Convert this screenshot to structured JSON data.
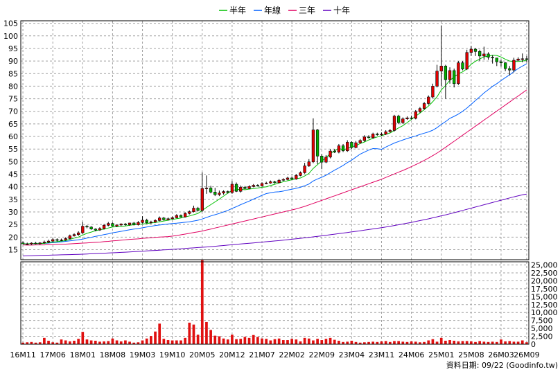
{
  "chart_data": {
    "type": "candlestick",
    "legend": {
      "placement": "top-center",
      "items": [
        {
          "name": "半年",
          "color": "#00c000"
        },
        {
          "name": "年線",
          "color": "#0060ff"
        },
        {
          "name": "三年",
          "color": "#e00060"
        },
        {
          "name": "十年",
          "color": "#6000c0"
        }
      ]
    },
    "price_axis": {
      "min": 11,
      "max": 106,
      "ticks": [
        15,
        20,
        25,
        30,
        35,
        40,
        45,
        50,
        55,
        60,
        65,
        70,
        75,
        80,
        85,
        90,
        95,
        100,
        105
      ],
      "position": "left"
    },
    "volume_axis": {
      "min": 0,
      "max": 26000,
      "ticks": [
        0,
        2500,
        5000,
        7500,
        10000,
        12500,
        15000,
        17500,
        20000,
        22500,
        25000
      ],
      "tick_labels": [
        "0",
        "2,500",
        "5,000",
        "7,500",
        "10,000",
        "12,500",
        "15,000",
        "17,500",
        "20,000",
        "22,500",
        "25,000"
      ],
      "position": "right"
    },
    "x_axis": {
      "months": 119,
      "ticks": [
        {
          "i": 0,
          "label": "16M11"
        },
        {
          "i": 7,
          "label": "17M06"
        },
        {
          "i": 14,
          "label": "18M01"
        },
        {
          "i": 21,
          "label": "18M08"
        },
        {
          "i": 28,
          "label": "19M03"
        },
        {
          "i": 35,
          "label": "19M10"
        },
        {
          "i": 42,
          "label": "20M05"
        },
        {
          "i": 49,
          "label": "20M12"
        },
        {
          "i": 56,
          "label": "21M07"
        },
        {
          "i": 63,
          "label": "22M02"
        },
        {
          "i": 70,
          "label": "22M09"
        },
        {
          "i": 77,
          "label": "23M04"
        },
        {
          "i": 84,
          "label": "23M11"
        },
        {
          "i": 91,
          "label": "24M06"
        },
        {
          "i": 98,
          "label": "25M01"
        },
        {
          "i": 105,
          "label": "25M08"
        },
        {
          "i": 112,
          "label": "26M03"
        },
        {
          "i": 118,
          "label": "26M09"
        }
      ]
    },
    "grid": true,
    "close": [
      17.3,
      17.3,
      17.6,
      17.4,
      17.7,
      18.0,
      18.4,
      19.0,
      18.7,
      18.9,
      19.4,
      20.5,
      21.0,
      21.7,
      24.3,
      24.0,
      23.2,
      22.8,
      23.4,
      24.7,
      25.4,
      24.4,
      24.8,
      25.2,
      24.9,
      25.6,
      24.9,
      25.8,
      26.7,
      25.7,
      26.0,
      26.6,
      27.6,
      26.9,
      27.3,
      27.7,
      28.6,
      28.0,
      29.4,
      30.1,
      31.5,
      30.6,
      39.3,
      39.5,
      37.9,
      36.9,
      37.5,
      38.1,
      37.7,
      41.0,
      38.2,
      39.8,
      39.3,
      40.1,
      40.6,
      40.4,
      41.3,
      41.5,
      42.0,
      41.6,
      42.6,
      42.9,
      43.5,
      43.1,
      44.5,
      45.6,
      48.3,
      49.9,
      62.6,
      52.2,
      49.8,
      51.8,
      54.2,
      53.8,
      56.3,
      54.3,
      57.7,
      55.6,
      57.5,
      58.4,
      59.8,
      59.5,
      61.0,
      60.7,
      60.9,
      61.9,
      62.4,
      68.1,
      65.5,
      67.0,
      67.4,
      67.2,
      69.9,
      71.1,
      73.1,
      75.7,
      80.0,
      86.0,
      88.0,
      82.6,
      86.2,
      81.0,
      89.3,
      86.8,
      93.4,
      94.7,
      93.8,
      92.0,
      92.8,
      91.5,
      91.2,
      89.7,
      89.3,
      87.0,
      86.4,
      90.3,
      90.8,
      90.9,
      90.8
    ],
    "open": [
      17.7,
      17.3,
      17.3,
      17.6,
      17.4,
      17.7,
      18.0,
      18.4,
      19.0,
      18.7,
      18.9,
      19.4,
      20.5,
      21.0,
      21.7,
      24.3,
      24.0,
      23.2,
      22.8,
      23.4,
      24.7,
      25.4,
      24.4,
      24.8,
      25.2,
      24.9,
      25.6,
      24.9,
      25.8,
      26.7,
      25.7,
      26.0,
      26.6,
      27.6,
      26.9,
      27.3,
      27.7,
      28.6,
      28.0,
      29.4,
      30.1,
      31.5,
      30.6,
      39.3,
      39.5,
      37.9,
      36.9,
      37.5,
      38.1,
      37.7,
      41.0,
      38.2,
      39.8,
      39.3,
      40.1,
      40.6,
      40.4,
      41.3,
      41.5,
      42.0,
      41.6,
      42.6,
      42.9,
      43.5,
      43.1,
      44.5,
      45.6,
      48.3,
      49.9,
      62.6,
      52.2,
      49.8,
      51.8,
      54.2,
      53.8,
      56.3,
      54.3,
      57.7,
      55.6,
      57.5,
      58.4,
      59.8,
      59.5,
      61.0,
      60.7,
      60.9,
      61.9,
      62.4,
      68.1,
      65.5,
      67.0,
      67.4,
      67.2,
      69.9,
      71.1,
      73.1,
      75.7,
      80.0,
      86.0,
      88.0,
      82.6,
      86.2,
      81.0,
      89.3,
      86.8,
      93.4,
      94.7,
      93.8,
      92.0,
      92.8,
      91.5,
      91.2,
      89.7,
      89.3,
      87.0,
      86.4,
      90.3,
      90.8,
      90.9
    ],
    "high": [
      18.3,
      17.8,
      17.9,
      18.1,
      18.0,
      18.6,
      19.0,
      19.5,
      19.5,
      19.4,
      19.9,
      21.0,
      21.5,
      22.3,
      26.0,
      24.8,
      24.3,
      23.5,
      23.9,
      25.2,
      26.0,
      25.8,
      25.0,
      25.5,
      25.6,
      25.7,
      26.0,
      26.4,
      28.3,
      27.3,
      26.5,
      27.1,
      28.2,
      28.0,
      27.8,
      28.2,
      29.1,
      29.0,
      29.9,
      30.6,
      32.5,
      32.0,
      45.7,
      44.5,
      40.4,
      39.6,
      38.5,
      38.6,
      38.5,
      42.3,
      41.7,
      40.5,
      40.3,
      40.6,
      41.1,
      41.0,
      41.8,
      42.0,
      42.5,
      42.4,
      43.1,
      43.4,
      44.0,
      44.0,
      45.0,
      46.1,
      49.5,
      51.0,
      67.2,
      63.0,
      53.0,
      52.6,
      55.0,
      55.0,
      57.0,
      57.0,
      58.5,
      58.1,
      58.2,
      59.0,
      60.5,
      60.5,
      61.5,
      61.5,
      61.6,
      62.5,
      63.0,
      68.6,
      68.6,
      67.6,
      68.0,
      68.3,
      70.5,
      71.7,
      73.7,
      76.3,
      81.0,
      88.5,
      104.0,
      88.5,
      87.5,
      87.0,
      90.0,
      90.0,
      94.5,
      96.0,
      95.2,
      94.5,
      95.7,
      93.5,
      92.3,
      91.2,
      90.5,
      89.5,
      88.0,
      91.3,
      91.5,
      93.0,
      92.0
    ],
    "low": [
      17.2,
      16.8,
      16.9,
      17.1,
      17.0,
      17.4,
      17.6,
      18.0,
      18.3,
      18.4,
      18.6,
      19.1,
      20.2,
      20.5,
      21.3,
      23.5,
      22.9,
      22.3,
      22.5,
      23.0,
      24.3,
      24.2,
      24.0,
      24.4,
      24.5,
      24.5,
      24.6,
      24.6,
      25.4,
      25.4,
      25.3,
      25.7,
      26.3,
      26.6,
      26.6,
      27.0,
      27.5,
      27.8,
      27.8,
      29.0,
      29.8,
      30.2,
      30.0,
      37.2,
      37.4,
      36.3,
      36.3,
      36.9,
      37.3,
      37.2,
      37.9,
      37.7,
      39.0,
      39.0,
      39.8,
      40.1,
      40.1,
      41.0,
      41.2,
      41.3,
      41.4,
      42.3,
      42.6,
      42.8,
      42.8,
      44.2,
      45.2,
      47.9,
      49.4,
      49.0,
      47.0,
      49.4,
      51.3,
      53.4,
      53.3,
      53.8,
      53.9,
      55.0,
      55.3,
      57.1,
      57.9,
      59.2,
      59.1,
      60.3,
      60.2,
      60.6,
      61.6,
      62.0,
      64.9,
      65.0,
      66.6,
      66.8,
      66.8,
      69.4,
      70.6,
      72.6,
      75.2,
      79.5,
      80.0,
      75.0,
      81.0,
      79.5,
      80.5,
      86.3,
      86.4,
      92.0,
      92.0,
      90.0,
      90.5,
      90.5,
      89.0,
      88.0,
      87.8,
      86.0,
      84.3,
      85.5,
      90.0,
      89.5,
      89.5
    ],
    "volume": [
      500,
      600,
      700,
      500,
      600,
      2000,
      1100,
      600,
      500,
      1500,
      1200,
      900,
      1100,
      1700,
      3900,
      1500,
      1200,
      1100,
      800,
      900,
      1000,
      1800,
      1200,
      900,
      1200,
      800,
      500,
      600,
      1200,
      1800,
      2600,
      4000,
      6500,
      1700,
      1300,
      1200,
      1200,
      1200,
      2000,
      6800,
      6200,
      3000,
      26500,
      7000,
      4500,
      2700,
      2500,
      1800,
      1500,
      3000,
      1600,
      1700,
      2300,
      2000,
      2900,
      2300,
      1800,
      1700,
      1200,
      1600,
      1800,
      1300,
      1300,
      1700,
      1500,
      900,
      2000,
      1800,
      1200,
      1700,
      1300,
      1700,
      2000,
      1400,
      1100,
      700,
      800,
      1100,
      700,
      500,
      600,
      700,
      800,
      700,
      900,
      1000,
      700,
      1000,
      1000,
      800,
      700,
      900,
      800,
      600,
      700,
      1200,
      1600,
      800,
      2000,
      1100,
      1300,
      1100,
      900,
      1000,
      1000,
      900,
      700,
      1000,
      800,
      700,
      800,
      700,
      1500,
      900,
      1000,
      800,
      800,
      1200,
      600
    ],
    "ma_half_year": [
      17.3,
      17.3,
      17.4,
      17.4,
      17.4,
      17.5,
      17.8,
      18.0,
      18.2,
      18.4,
      18.6,
      19.1,
      19.6,
      20.0,
      20.8,
      21.5,
      22.0,
      22.5,
      22.9,
      23.2,
      23.6,
      24.0,
      24.1,
      24.2,
      24.4,
      24.7,
      24.9,
      25.1,
      25.2,
      25.4,
      25.6,
      25.8,
      26.1,
      26.4,
      26.7,
      27.0,
      27.3,
      27.6,
      28.0,
      28.4,
      28.9,
      29.4,
      30.6,
      31.8,
      32.9,
      34.0,
      35.1,
      36.3,
      37.5,
      38.5,
      38.9,
      39.0,
      38.8,
      39.1,
      39.3,
      39.5,
      39.8,
      40.0,
      40.5,
      41.0,
      41.5,
      42.0,
      42.4,
      42.8,
      43.2,
      43.5,
      44.3,
      45.3,
      47.3,
      48.8,
      50.2,
      51.6,
      53.2,
      54.3,
      55.4,
      54.5,
      55.3,
      55.9,
      56.3,
      57.2,
      57.8,
      58.6,
      59.3,
      59.8,
      60.3,
      60.9,
      61.4,
      62.4,
      63.4,
      64.3,
      65.5,
      66.8,
      68.1,
      69.3,
      70.7,
      72.1,
      73.8,
      75.8,
      78.5,
      80.3,
      82.3,
      83.6,
      84.9,
      85.7,
      86.9,
      88.7,
      89.9,
      90.8,
      91.7,
      91.9,
      92.3,
      92.2,
      91.6,
      90.7,
      90.0,
      89.8,
      89.8,
      90.0,
      90.3
    ],
    "ma_year": [
      17.3,
      17.3,
      17.4,
      17.4,
      17.4,
      17.5,
      17.6,
      17.8,
      17.9,
      18.1,
      18.3,
      18.5,
      18.7,
      18.9,
      19.2,
      19.6,
      19.9,
      20.3,
      20.6,
      21.0,
      21.3,
      21.7,
      22.0,
      22.3,
      22.6,
      22.9,
      23.2,
      23.4,
      23.7,
      24.0,
      24.3,
      24.6,
      24.8,
      25.0,
      25.2,
      25.4,
      25.5,
      25.7,
      25.9,
      26.1,
      26.4,
      26.7,
      27.2,
      27.8,
      28.4,
      28.9,
      29.4,
      30.0,
      30.6,
      31.4,
      32.1,
      32.9,
      33.6,
      34.3,
      35.1,
      35.8,
      36.6,
      37.3,
      37.6,
      37.9,
      38.0,
      38.3,
      38.7,
      39.0,
      39.4,
      39.8,
      40.4,
      41.1,
      42.3,
      43.1,
      43.8,
      44.6,
      45.6,
      46.6,
      47.5,
      48.5,
      49.6,
      50.6,
      51.8,
      53.0,
      53.8,
      54.6,
      55.2,
      55.1,
      54.9,
      55.8,
      56.6,
      57.4,
      58.0,
      58.6,
      59.2,
      59.7,
      60.2,
      60.8,
      61.3,
      61.8,
      62.5,
      63.5,
      64.8,
      65.9,
      67.2,
      68.0,
      68.9,
      70.0,
      71.3,
      72.8,
      74.3,
      75.8,
      77.3,
      78.6,
      79.9,
      81.0,
      82.2,
      83.4,
      84.5,
      85.8,
      87.0,
      88.0,
      88.9
    ],
    "ma_three_year": [
      16.9,
      16.8,
      16.8,
      16.9,
      16.9,
      16.9,
      17.0,
      17.0,
      17.1,
      17.2,
      17.2,
      17.3,
      17.4,
      17.5,
      17.6,
      17.7,
      17.8,
      17.9,
      18.0,
      18.2,
      18.3,
      18.5,
      18.6,
      18.8,
      18.9,
      19.1,
      19.2,
      19.3,
      19.5,
      19.6,
      19.7,
      19.9,
      20.0,
      20.1,
      20.2,
      20.4,
      20.6,
      20.9,
      21.2,
      21.5,
      21.8,
      22.1,
      22.4,
      22.8,
      23.2,
      23.6,
      24.0,
      24.4,
      24.8,
      25.2,
      25.6,
      26.0,
      26.4,
      26.8,
      27.2,
      27.6,
      28.0,
      28.4,
      28.8,
      29.2,
      29.6,
      30.0,
      30.4,
      30.8,
      31.2,
      31.7,
      32.2,
      32.8,
      33.4,
      34.0,
      34.6,
      35.2,
      35.8,
      36.4,
      37.0,
      37.6,
      38.2,
      38.8,
      39.4,
      40.0,
      40.6,
      41.2,
      41.8,
      42.4,
      43.0,
      43.7,
      44.4,
      45.1,
      45.8,
      46.5,
      47.2,
      48.0,
      48.8,
      49.6,
      50.5,
      51.4,
      52.4,
      53.4,
      54.5,
      55.7,
      56.9,
      58.1,
      59.3,
      60.5,
      61.7,
      62.9,
      64.1,
      65.3,
      66.5,
      67.7,
      68.9,
      70.1,
      71.3,
      72.5,
      73.7,
      74.9,
      76.1,
      77.3,
      78.5
    ],
    "ma_ten_year": [
      12.5,
      12.55,
      12.6,
      12.65,
      12.7,
      12.75,
      12.8,
      12.85,
      12.9,
      12.95,
      13.0,
      13.05,
      13.1,
      13.15,
      13.2,
      13.28,
      13.36,
      13.44,
      13.52,
      13.6,
      13.68,
      13.76,
      13.84,
      13.92,
      14.0,
      14.1,
      14.2,
      14.3,
      14.4,
      14.5,
      14.6,
      14.7,
      14.8,
      14.9,
      15.0,
      15.12,
      15.24,
      15.36,
      15.48,
      15.6,
      15.72,
      15.84,
      15.96,
      16.08,
      16.2,
      16.35,
      16.5,
      16.65,
      16.8,
      16.95,
      17.1,
      17.25,
      17.4,
      17.55,
      17.7,
      17.85,
      18.0,
      18.15,
      18.3,
      18.45,
      18.6,
      18.78,
      18.96,
      19.14,
      19.32,
      19.5,
      19.7,
      19.9,
      20.1,
      20.3,
      20.5,
      20.72,
      20.94,
      21.16,
      21.38,
      21.6,
      21.83,
      22.06,
      22.29,
      22.52,
      22.75,
      23.0,
      23.25,
      23.5,
      23.75,
      24.0,
      24.3,
      24.6,
      24.9,
      25.2,
      25.5,
      25.85,
      26.2,
      26.55,
      26.9,
      27.25,
      27.65,
      28.05,
      28.45,
      28.85,
      29.25,
      29.7,
      30.15,
      30.6,
      31.05,
      31.5,
      31.95,
      32.4,
      32.85,
      33.3,
      33.75,
      34.2,
      34.65,
      35.1,
      35.55,
      36.0,
      36.4,
      36.8,
      37.1
    ],
    "source_label": "資料日期: 09/22 (Goodinfo.tw)"
  }
}
